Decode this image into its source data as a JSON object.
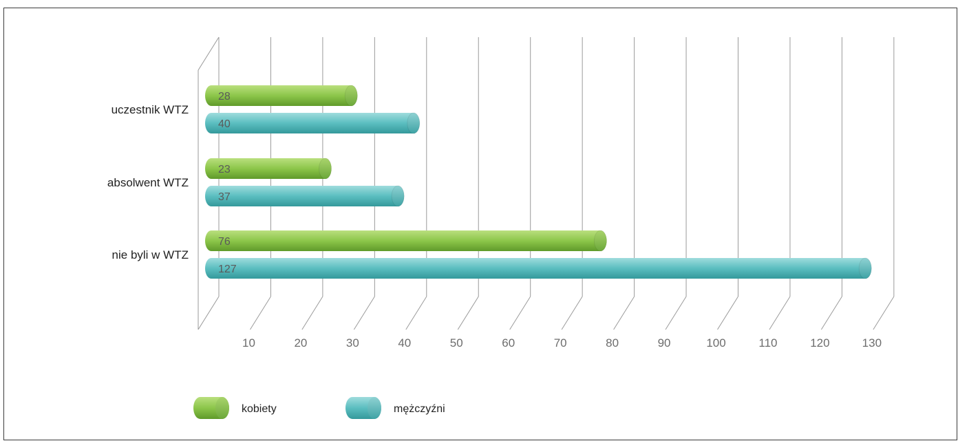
{
  "chart_data": {
    "type": "bar",
    "orientation": "horizontal",
    "style": "3d-cylinder",
    "categories": [
      "uczestnik WTZ",
      "absolwent WTZ",
      "nie byli w WTZ"
    ],
    "series": [
      {
        "name": "kobiety",
        "values": [
          28,
          23,
          76
        ],
        "color": "#8cc64a"
      },
      {
        "name": "mężczyźni",
        "values": [
          40,
          37,
          127
        ],
        "color": "#5bbec0"
      }
    ],
    "xlim": [
      0,
      130
    ],
    "xticks": [
      10,
      20,
      30,
      40,
      50,
      60,
      70,
      80,
      90,
      100,
      110,
      120,
      130
    ],
    "grid": true,
    "legend": "bottom"
  }
}
